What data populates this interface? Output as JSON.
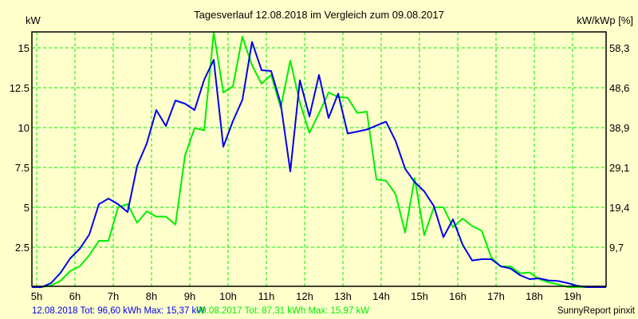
{
  "chart_data": {
    "type": "line",
    "title": "Tagesverlauf 12.08.2018 im Vergleich zum 09.08.2017",
    "ylabel": "kW",
    "y2label": "kW/kWp [%]",
    "xlabel": "",
    "xlim": [
      4.875,
      19.875
    ],
    "ylim": [
      0,
      16
    ],
    "grid": true,
    "x_ticks": [
      5,
      6,
      7,
      8,
      9,
      10,
      11,
      12,
      13,
      14,
      15,
      16,
      17,
      18,
      19
    ],
    "x_tick_labels": [
      "5h",
      "6h",
      "7h",
      "8h",
      "9h",
      "10h",
      "11h",
      "12h",
      "13h",
      "14h",
      "15h",
      "16h",
      "17h",
      "18h",
      "19h"
    ],
    "y_ticks": [
      2.5,
      5,
      7.5,
      10,
      12.5,
      15
    ],
    "y_tick_labels": [
      "2.5",
      "5",
      "7.5",
      "10",
      "12.5",
      "15"
    ],
    "y2_tick_labels": [
      "9,7",
      "19,4",
      "29,1",
      "38,9",
      "48,6",
      "58,3"
    ],
    "x_start": 4.875,
    "x_step": 0.25,
    "series": [
      {
        "name": "12.08.2018",
        "color": "#0000ee",
        "legend": "12.08.2018 Tot: 96,60 kWh Max: 15,37 kW",
        "values": [
          0,
          0,
          0.25,
          0.9,
          1.8,
          2.4,
          3.3,
          5.2,
          5.55,
          5.2,
          4.7,
          7.6,
          9.0,
          11.1,
          10.1,
          11.7,
          11.5,
          11.1,
          13.0,
          14.25,
          8.8,
          10.4,
          11.75,
          15.37,
          13.6,
          13.55,
          11.5,
          7.25,
          12.97,
          10.7,
          13.3,
          10.6,
          12.13,
          9.63,
          9.75,
          9.88,
          10.13,
          10.37,
          9.17,
          7.42,
          6.58,
          6.0,
          5.08,
          3.13,
          4.25,
          2.67,
          1.67,
          1.75,
          1.75,
          1.3,
          1.17,
          0.75,
          0.5,
          0.55,
          0.42,
          0.38,
          0.25,
          0.08,
          0,
          0,
          0
        ]
      },
      {
        "name": "09.08.2017",
        "color": "#00ee00",
        "legend": "09.08.2017 Tot: 87,31 kWh Max: 15,97 kW",
        "values": [
          0,
          0,
          0.1,
          0.4,
          1.0,
          1.3,
          2.0,
          2.9,
          2.9,
          5.0,
          5.2,
          4.03,
          4.75,
          4.42,
          4.42,
          3.92,
          8.25,
          9.97,
          9.83,
          15.97,
          12.2,
          12.58,
          15.7,
          13.9,
          12.75,
          13.3,
          11.25,
          14.2,
          11.58,
          9.67,
          10.9,
          12.2,
          11.92,
          11.87,
          10.92,
          11.0,
          6.75,
          6.67,
          5.83,
          3.42,
          6.83,
          3.25,
          5.0,
          5.0,
          3.75,
          4.3,
          3.83,
          3.53,
          1.87,
          1.3,
          1.3,
          0.87,
          0.92,
          0.5,
          0.3,
          0.17,
          0,
          0,
          0,
          0,
          0
        ]
      }
    ],
    "credit": "SunnyReport pinxit"
  }
}
